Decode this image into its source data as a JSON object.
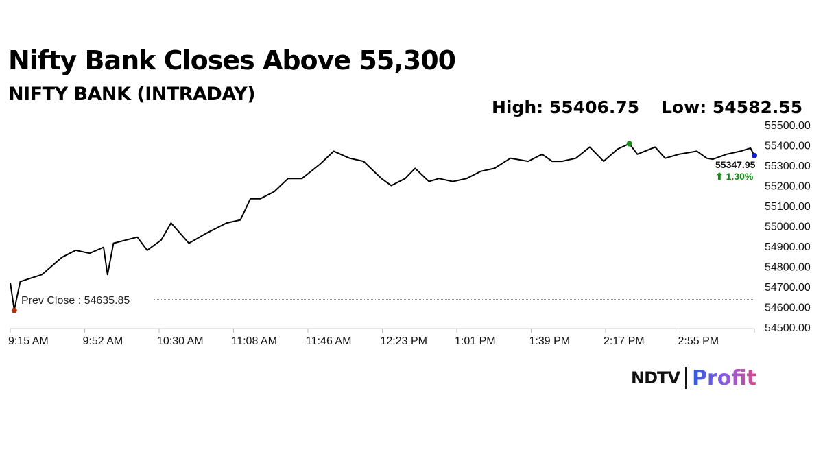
{
  "header": {
    "title": "Nifty Bank Closes Above 55,300",
    "subtitle": "NIFTY BANK (INTRADAY)",
    "high_label": "High: 55406.75",
    "low_label": "Low: 54582.55"
  },
  "logo": {
    "ndtv": "NDTV",
    "profit": "Profit"
  },
  "chart_data": {
    "type": "line",
    "xlim": [
      "9:15",
      "15:30"
    ],
    "ylim": [
      54500,
      55500
    ],
    "x_ticks": [
      "9:15 AM",
      "9:52 AM",
      "10:30 AM",
      "11:08 AM",
      "11:46 AM",
      "12:23 PM",
      "1:01 PM",
      "1:39 PM",
      "2:17 PM",
      "2:55 PM"
    ],
    "y_ticks": [
      "54500.00",
      "54600.00",
      "54700.00",
      "54800.00",
      "54900.00",
      "55000.00",
      "55100.00",
      "55200.00",
      "55300.00",
      "55400.00",
      "55500.00"
    ],
    "series": [
      {
        "color": "#000000",
        "points": [
          [
            "9:15",
            54720
          ],
          [
            "9:17",
            54585
          ],
          [
            "9:20",
            54725
          ],
          [
            "9:31",
            54760
          ],
          [
            "9:41",
            54845
          ],
          [
            "9:48",
            54880
          ],
          [
            "9:55",
            54865
          ],
          [
            "10:02",
            54895
          ],
          [
            "10:04",
            54760
          ],
          [
            "10:07",
            54915
          ],
          [
            "10:19",
            54945
          ],
          [
            "10:24",
            54880
          ],
          [
            "10:31",
            54930
          ],
          [
            "10:36",
            55015
          ],
          [
            "10:45",
            54915
          ],
          [
            "10:54",
            54965
          ],
          [
            "11:04",
            55015
          ],
          [
            "11:11",
            55030
          ],
          [
            "11:16",
            55135
          ],
          [
            "11:21",
            55135
          ],
          [
            "11:28",
            55170
          ],
          [
            "11:35",
            55235
          ],
          [
            "11:42",
            55235
          ],
          [
            "11:51",
            55305
          ],
          [
            "11:58",
            55370
          ],
          [
            "12:06",
            55335
          ],
          [
            "12:13",
            55320
          ],
          [
            "12:22",
            55235
          ],
          [
            "12:27",
            55200
          ],
          [
            "12:34",
            55235
          ],
          [
            "12:39",
            55285
          ],
          [
            "12:46",
            55220
          ],
          [
            "12:51",
            55235
          ],
          [
            "12:58",
            55220
          ],
          [
            "13:05",
            55235
          ],
          [
            "13:12",
            55270
          ],
          [
            "13:19",
            55285
          ],
          [
            "13:27",
            55335
          ],
          [
            "13:36",
            55320
          ],
          [
            "13:43",
            55355
          ],
          [
            "13:48",
            55320
          ],
          [
            "13:53",
            55320
          ],
          [
            "14:00",
            55335
          ],
          [
            "14:07",
            55390
          ],
          [
            "14:14",
            55320
          ],
          [
            "14:21",
            55380
          ],
          [
            "14:27",
            55406.75
          ],
          [
            "14:31",
            55355
          ],
          [
            "14:40",
            55390
          ],
          [
            "14:45",
            55335
          ],
          [
            "14:52",
            55355
          ],
          [
            "15:01",
            55370
          ],
          [
            "15:06",
            55335
          ],
          [
            "15:09",
            55330
          ],
          [
            "15:16",
            55355
          ],
          [
            "15:23",
            55370
          ],
          [
            "15:28",
            55385
          ],
          [
            "15:30",
            55347.95
          ]
        ]
      }
    ],
    "prev_close": {
      "value": 54635.85,
      "label": "Prev Close : 54635.85",
      "color": "#b03010"
    },
    "high_marker": {
      "time": "14:27",
      "value": 55406.75,
      "color": "#1a8a1a"
    },
    "low_marker": {
      "time": "9:17",
      "value": 54582.55,
      "color": "#b03010"
    },
    "last": {
      "value_label": "55347.95",
      "change_label": "⬆ 1.30%",
      "change_color": "#138a13",
      "marker_color": "#1020c8"
    },
    "grid": false
  }
}
